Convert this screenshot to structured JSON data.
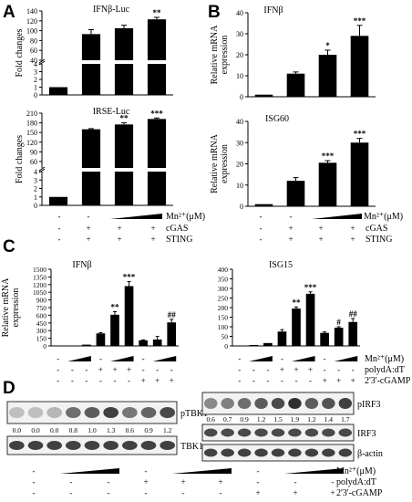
{
  "panel_letters": [
    "A",
    "B",
    "C",
    "D"
  ],
  "chart_data": [
    {
      "id": "A1",
      "type": "bar",
      "title": "IFNβ-Luc",
      "ylabel": "Fold changes",
      "broken_axis": true,
      "lower_segment": {
        "ylim": [
          0,
          4
        ],
        "ticks": [
          "0",
          "1",
          "2",
          "3",
          "4"
        ]
      },
      "upper_segment": {
        "ylim": [
          40,
          140
        ],
        "ticks": [
          "40",
          "60",
          "80",
          "100",
          "120",
          "140"
        ]
      },
      "values": [
        1,
        93,
        105,
        123
      ],
      "errors": [
        0,
        9,
        6,
        4
      ],
      "significance": [
        "",
        "",
        "",
        "**"
      ]
    },
    {
      "id": "A2",
      "type": "bar",
      "title": "IRSE-Luc",
      "ylabel": "Fold changes",
      "broken_axis": true,
      "lower_segment": {
        "ylim": [
          0,
          4
        ],
        "ticks": [
          "0",
          "1",
          "2",
          "3",
          "4"
        ]
      },
      "upper_segment": {
        "ylim": [
          40,
          210
        ],
        "ticks": [
          "60",
          "90",
          "120",
          "150",
          "180",
          "210"
        ]
      },
      "values": [
        1,
        160,
        175,
        192
      ],
      "errors": [
        0,
        2,
        5,
        3
      ],
      "significance": [
        "",
        "",
        "**",
        "***"
      ]
    },
    {
      "id": "B1",
      "type": "bar",
      "title": "IFNβ",
      "ylabel": "Relative mRNA expression",
      "ylim": [
        0,
        40
      ],
      "ticks": [
        "0",
        "10",
        "20",
        "30",
        "40"
      ],
      "values": [
        1,
        11,
        20,
        29
      ],
      "errors": [
        0,
        0.8,
        2.2,
        5
      ],
      "significance": [
        "",
        "",
        "*",
        "***"
      ]
    },
    {
      "id": "B2",
      "type": "bar",
      "title": "ISG60",
      "ylabel": "Relative mRNA expression",
      "ylim": [
        0,
        40
      ],
      "ticks": [
        "0",
        "10",
        "20",
        "30",
        "40"
      ],
      "values": [
        1,
        12,
        20.5,
        30
      ],
      "errors": [
        0,
        1.5,
        1,
        2
      ],
      "significance": [
        "",
        "",
        "***",
        "***"
      ]
    },
    {
      "id": "C1",
      "type": "bar",
      "title": "IFNβ",
      "ylabel": "Relative mRNA expression",
      "ylim": [
        0,
        1500
      ],
      "ticks": [
        "0",
        "150",
        "300",
        "450",
        "600",
        "750",
        "900",
        "1050",
        "1200",
        "1350",
        "1500"
      ],
      "values": [
        2,
        8,
        25,
        245,
        610,
        1170,
        110,
        125,
        460
      ],
      "errors": [
        0,
        0,
        0,
        15,
        60,
        90,
        8,
        60,
        60
      ],
      "significance": [
        "",
        "",
        "",
        "",
        "**",
        "***",
        "",
        "",
        "##"
      ]
    },
    {
      "id": "C2",
      "type": "bar",
      "title": "ISG15",
      "ylabel": "",
      "ylim": [
        0,
        400
      ],
      "ticks": [
        "0",
        "50",
        "100",
        "150",
        "200",
        "250",
        "300",
        "350",
        "400"
      ],
      "values": [
        2,
        5,
        15,
        75,
        195,
        272,
        68,
        95,
        125
      ],
      "errors": [
        0,
        0,
        0,
        10,
        8,
        10,
        5,
        5,
        18
      ],
      "significance": [
        "",
        "",
        "",
        "",
        "**",
        "***",
        "",
        "#",
        "##"
      ]
    }
  ],
  "conditions_AB": {
    "mn_label": "Mn²⁺(μM)",
    "rows": [
      {
        "label": "cGAS",
        "signs": [
          "-",
          "+",
          "+",
          "+"
        ]
      },
      {
        "label": "STING",
        "signs": [
          "-",
          "+",
          "+",
          "+"
        ]
      }
    ],
    "mn_signs": [
      "-",
      "-"
    ]
  },
  "conditions_C": {
    "mn_label": "Mn²⁺(μM)",
    "row1_label": "polydA:dT",
    "row2_label": "2'3'-cGAMP",
    "mn_signs": [
      "-",
      "-",
      "-"
    ],
    "row1_signs": [
      "-",
      "-",
      "-",
      "+",
      "+",
      "+",
      "-",
      "-",
      "-"
    ],
    "row2_signs": [
      "-",
      "-",
      "-",
      "-",
      "-",
      "-",
      "+",
      "+",
      "+"
    ]
  },
  "blots": {
    "left": {
      "bands": [
        "pTBK1",
        "TBK1"
      ],
      "quant": [
        "0.0",
        "0.0",
        "0.0",
        "0.8",
        "1.0",
        "1.3",
        "0.6",
        "0.9",
        "1.2"
      ],
      "intensity": [
        0.05,
        0.05,
        0.1,
        0.5,
        0.6,
        0.75,
        0.45,
        0.55,
        0.7
      ]
    },
    "right": {
      "bands": [
        "pIRF3",
        "IRF3",
        "β-actin"
      ],
      "quant": [
        "0.6",
        "0.7",
        "0.9",
        "1.2",
        "1.5",
        "1.9",
        "1.2",
        "1.4",
        "1.7"
      ],
      "intensity": [
        0.35,
        0.4,
        0.5,
        0.6,
        0.7,
        0.85,
        0.6,
        0.65,
        0.75
      ]
    }
  },
  "conditions_D": {
    "mn_label": "Mn²⁺(μM)",
    "row1_label": "polydA:dT",
    "row2_label": "2'3'-cGAMP"
  },
  "colors": {
    "bar": "#000000",
    "axis": "#000000"
  }
}
